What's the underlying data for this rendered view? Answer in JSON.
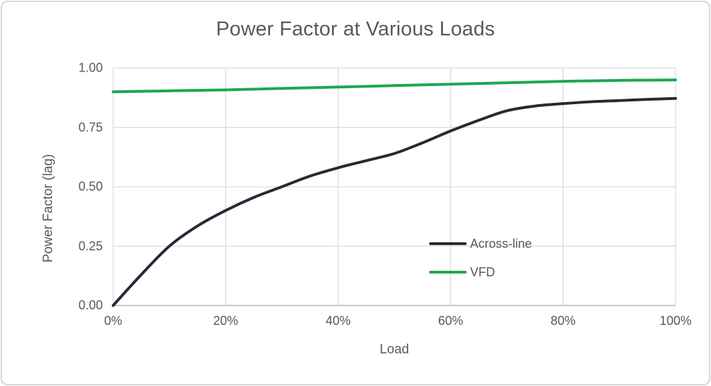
{
  "chart_data": {
    "type": "line",
    "title": "Power Factor at Various Loads",
    "xlabel": "Load",
    "ylabel": "Power Factor (lag)",
    "xlim": [
      0,
      100
    ],
    "ylim": [
      0,
      1
    ],
    "grid": true,
    "legend_position": "inside-right",
    "x_ticks": [
      {
        "value": 0,
        "label": "0%"
      },
      {
        "value": 20,
        "label": "20%"
      },
      {
        "value": 40,
        "label": "40%"
      },
      {
        "value": 60,
        "label": "60%"
      },
      {
        "value": 80,
        "label": "80%"
      },
      {
        "value": 100,
        "label": "100%"
      }
    ],
    "y_ticks": [
      {
        "value": 0.0,
        "label": "0.00"
      },
      {
        "value": 0.25,
        "label": "0.25"
      },
      {
        "value": 0.5,
        "label": "0.50"
      },
      {
        "value": 0.75,
        "label": "0.75"
      },
      {
        "value": 1.0,
        "label": "1.00"
      }
    ],
    "x": [
      0,
      5,
      10,
      15,
      20,
      25,
      30,
      35,
      40,
      45,
      50,
      55,
      60,
      65,
      70,
      75,
      80,
      85,
      90,
      95,
      100
    ],
    "series": [
      {
        "name": "Across-line",
        "color": "#222B35",
        "values": [
          0.0,
          0.13,
          0.25,
          0.335,
          0.4,
          0.455,
          0.5,
          0.545,
          0.58,
          0.61,
          0.64,
          0.685,
          0.735,
          0.78,
          0.82,
          0.84,
          0.85,
          0.858,
          0.863,
          0.868,
          0.872
        ]
      },
      {
        "name": "VFD",
        "color": "#1CA84F",
        "values": [
          0.9,
          0.902,
          0.904,
          0.906,
          0.908,
          0.911,
          0.914,
          0.917,
          0.92,
          0.923,
          0.926,
          0.929,
          0.932,
          0.935,
          0.938,
          0.941,
          0.944,
          0.946,
          0.948,
          0.949,
          0.95
        ]
      }
    ]
  },
  "colors": {
    "gridline": "#D9D9D9",
    "axis_line": "#BFBFBF",
    "text": "#595959",
    "frame_border": "#D9D9D9",
    "background": "#FFFFFF"
  }
}
